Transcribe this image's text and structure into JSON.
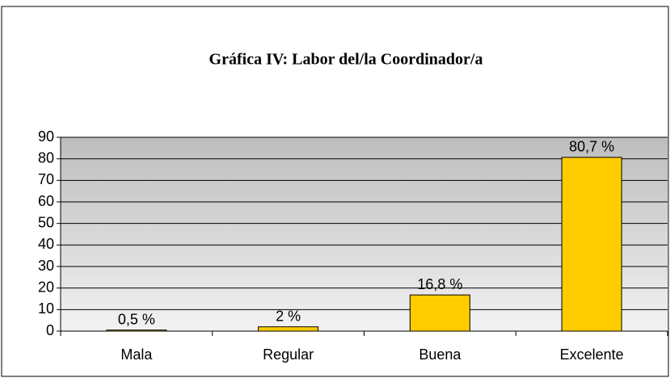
{
  "chart_data": {
    "type": "bar",
    "title": "Gráfica IV: Labor del/la Coordinador/a",
    "categories": [
      "Mala",
      "Regular",
      "Buena",
      "Excelente"
    ],
    "values": [
      0.5,
      2,
      16.8,
      80.7
    ],
    "value_labels": [
      "0,5 %",
      "2 %",
      "16,8 %",
      "80,7 %"
    ],
    "color": "#ffcc00",
    "ylim": [
      0,
      90
    ],
    "yticks": [
      0,
      10,
      20,
      30,
      40,
      50,
      60,
      70,
      80,
      90
    ],
    "grid": true
  }
}
